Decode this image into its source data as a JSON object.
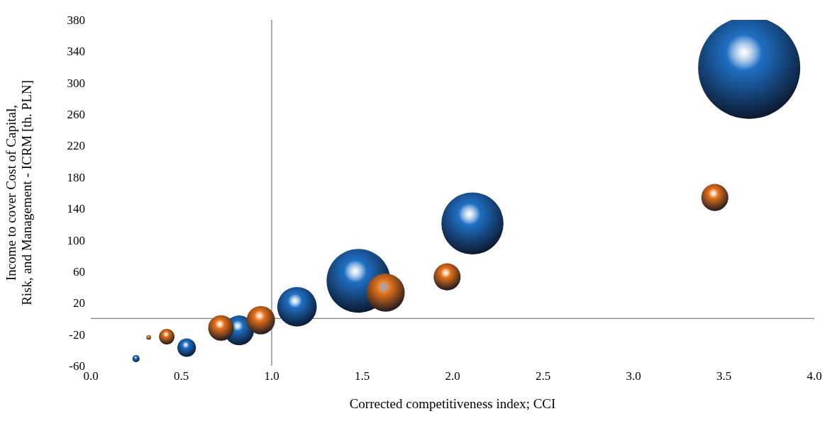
{
  "chart_data": {
    "type": "bubble",
    "xlabel": "Corrected competitiveness index; CCI",
    "ylabel": "Income to cover Cost of Capital, Risk, and Management - ICRM [th. PLN]",
    "xlim": [
      0,
      4
    ],
    "xticks": [
      {
        "value": 0,
        "label": "0.0"
      },
      {
        "value": 0.5,
        "label": "0.5"
      },
      {
        "value": 1,
        "label": "1.0"
      },
      {
        "value": 1.5,
        "label": "1.5"
      },
      {
        "value": 2,
        "label": "2.0"
      },
      {
        "value": 2.5,
        "label": "2.5"
      },
      {
        "value": 3,
        "label": "3.0"
      },
      {
        "value": 3.5,
        "label": "3.5"
      },
      {
        "value": 4,
        "label": "4.0"
      }
    ],
    "ylim": [
      -60,
      380
    ],
    "yticks": [
      -60,
      -20,
      20,
      60,
      100,
      140,
      180,
      220,
      260,
      300,
      340,
      380
    ],
    "grid": false,
    "legend": false,
    "ref_lines": [
      {
        "axis": "x",
        "value": 1,
        "color": "#808080"
      },
      {
        "axis": "y",
        "value": 0,
        "color": "#808080"
      }
    ],
    "series": [
      {
        "color": "#1f6fc4",
        "x": [
          0.25,
          0.53,
          0.82,
          1.14,
          1.48,
          2.11,
          3.64
        ],
        "values": [
          -51,
          -37,
          -15,
          15,
          48,
          121,
          319
        ],
        "sizes": [
          0.005,
          0.033,
          0.085,
          0.15,
          0.39,
          0.37,
          1
        ]
      },
      {
        "color": "#e8731a",
        "x": [
          0.32,
          0.42,
          0.72,
          0.94,
          1.63,
          1.97,
          3.45
        ],
        "values": [
          -24,
          -23,
          -12,
          -2,
          33,
          53,
          154
        ],
        "sizes": [
          0.002,
          0.023,
          0.063,
          0.077,
          0.14,
          0.07,
          0.07
        ]
      }
    ]
  }
}
